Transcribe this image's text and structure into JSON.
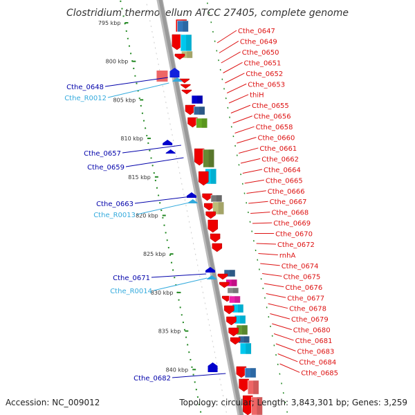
{
  "title": "Clostridium thermocellum ATCC 27405, complete genome",
  "footer": {
    "accession": "Accession: NC_009012",
    "topology": "Topology: circular; Length: 3,843,301 bp; Genes: 3,259"
  },
  "colors": {
    "forward_label": "#dd1111",
    "reverse_label": "#0000aa",
    "rna_label": "#33aadd",
    "scale": "#228822",
    "backbone": "#999999"
  },
  "scale_ticks": [
    "795 kbp",
    "800 kbp",
    "805 kbp",
    "810 kbp",
    "815 kbp",
    "820 kbp",
    "825 kbp",
    "830 kbp",
    "835 kbp",
    "840 kbp"
  ],
  "forward_genes": [
    "Cthe_0647",
    "Cthe_0649",
    "Cthe_0650",
    "Cthe_0651",
    "Cthe_0652",
    "Cthe_0653",
    "thiH",
    "Cthe_0655",
    "Cthe_0656",
    "Cthe_0658",
    "Cthe_0660",
    "Cthe_0661",
    "Cthe_0662",
    "Cthe_0664",
    "Cthe_0665",
    "Cthe_0666",
    "Cthe_0667",
    "Cthe_0668",
    "Cthe_0669",
    "Cthe_0670",
    "Cthe_0672",
    "rnhA",
    "Cthe_0674",
    "Cthe_0675",
    "Cthe_0676",
    "Cthe_0677",
    "Cthe_0678",
    "Cthe_0679",
    "Cthe_0680",
    "Cthe_0681",
    "Cthe_0683",
    "Cthe_0684",
    "Cthe_0685"
  ],
  "reverse_genes": [
    {
      "name": "Cthe_0648",
      "type": "gene"
    },
    {
      "name": "Cthe_R0012",
      "type": "rna"
    },
    {
      "name": "Cthe_0657",
      "type": "gene"
    },
    {
      "name": "Cthe_0659",
      "type": "gene"
    },
    {
      "name": "Cthe_0663",
      "type": "gene"
    },
    {
      "name": "Cthe_R0013",
      "type": "rna"
    },
    {
      "name": "Cthe_0671",
      "type": "gene"
    },
    {
      "name": "Cthe_R0014",
      "type": "rna"
    },
    {
      "name": "Cthe_0682",
      "type": "gene"
    }
  ]
}
